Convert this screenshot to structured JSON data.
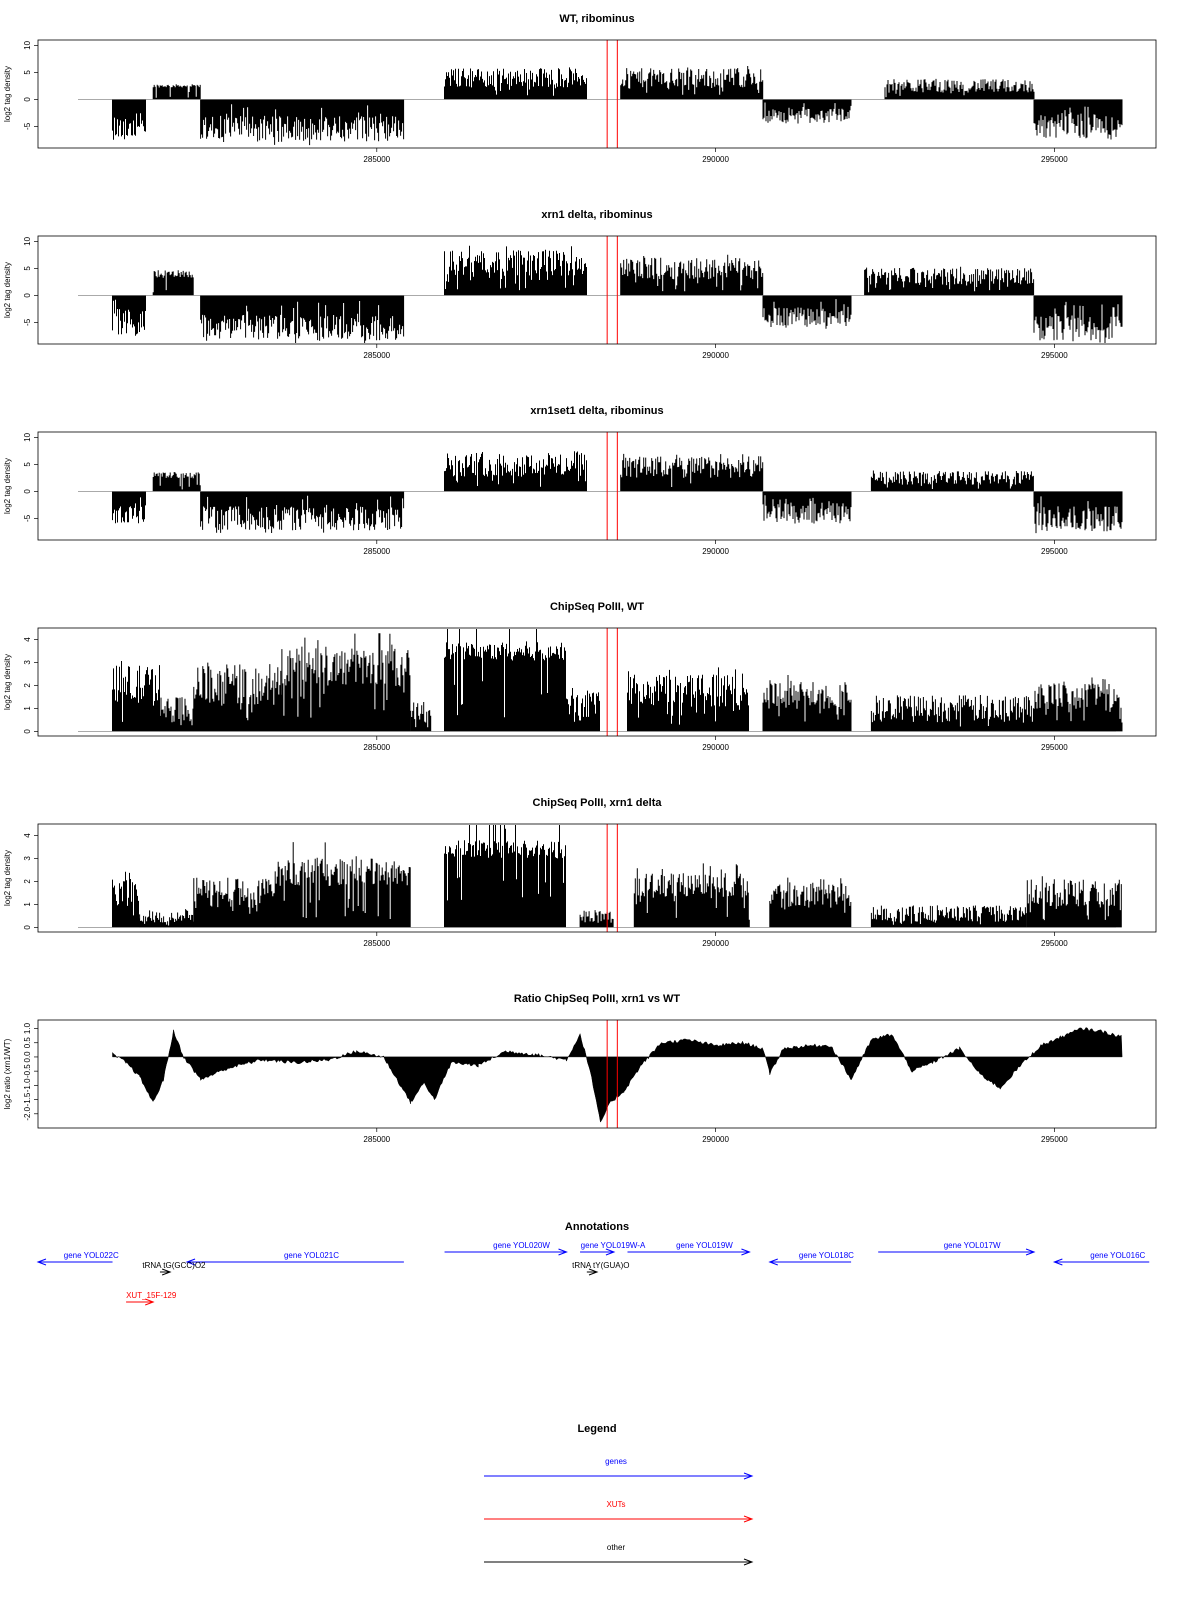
{
  "chart_data": [
    {
      "type": "bar",
      "title": "WT, ribominus",
      "ylabel": "log2 tag density",
      "ylim": [
        -9,
        11
      ],
      "yticks": [
        -5,
        0,
        5,
        10
      ],
      "xlim": [
        280000,
        296500
      ],
      "xticks": [
        "285000",
        "290000",
        "295000"
      ],
      "markers": [
        288400,
        288550
      ],
      "segments": [
        {
          "x": [
            281100,
            281600
          ],
          "base": 0,
          "amp": -5,
          "var": 0.5
        },
        {
          "x": [
            281700,
            282400
          ],
          "base": 1.5,
          "amp": 1,
          "var": 0.3
        },
        {
          "x": [
            282400,
            285400
          ],
          "base": 0,
          "amp": -5.5,
          "var": 0.45
        },
        {
          "x": [
            286000,
            288100
          ],
          "base": 0,
          "amp": 4,
          "var": 0.45
        },
        {
          "x": [
            288600,
            290700
          ],
          "base": 0,
          "amp": 4,
          "var": 0.45
        },
        {
          "x": [
            290700,
            292000
          ],
          "base": 0,
          "amp": -3,
          "var": 0.5
        },
        {
          "x": [
            292500,
            294700
          ],
          "base": 0,
          "amp": 2.5,
          "var": 0.5
        },
        {
          "x": [
            294700,
            296000
          ],
          "base": 0,
          "amp": -5,
          "var": 0.45
        }
      ]
    },
    {
      "type": "bar",
      "title": "xrn1 delta, ribominus",
      "ylabel": "log2 tag density",
      "ylim": [
        -9,
        11
      ],
      "yticks": [
        -5,
        0,
        5,
        10
      ],
      "xlim": [
        280000,
        296500
      ],
      "xticks": [
        "285000",
        "290000",
        "295000"
      ],
      "markers": [
        288400,
        288550
      ],
      "segments": [
        {
          "x": [
            281100,
            281600
          ],
          "base": 0,
          "amp": -5,
          "var": 0.5
        },
        {
          "x": [
            281700,
            282300
          ],
          "base": 1.5,
          "amp": 2.5,
          "var": 0.3
        },
        {
          "x": [
            282400,
            285400
          ],
          "base": 0,
          "amp": -6,
          "var": 0.4
        },
        {
          "x": [
            286000,
            288100
          ],
          "base": 0,
          "amp": 6,
          "var": 0.4
        },
        {
          "x": [
            288600,
            290700
          ],
          "base": 0,
          "amp": 5,
          "var": 0.4
        },
        {
          "x": [
            290700,
            292000
          ],
          "base": 0,
          "amp": -4,
          "var": 0.45
        },
        {
          "x": [
            292200,
            294700
          ],
          "base": 0,
          "amp": 3.5,
          "var": 0.45
        },
        {
          "x": [
            294700,
            296000
          ],
          "base": 0,
          "amp": -6,
          "var": 0.4
        }
      ]
    },
    {
      "type": "bar",
      "title": "xrn1set1 delta, ribominus",
      "ylabel": "log2 tag density",
      "ylim": [
        -9,
        11
      ],
      "yticks": [
        -5,
        0,
        5,
        10
      ],
      "xlim": [
        280000,
        296500
      ],
      "xticks": [
        "285000",
        "290000",
        "295000"
      ],
      "markers": [
        288400,
        288550
      ],
      "segments": [
        {
          "x": [
            281100,
            281600
          ],
          "base": 0,
          "amp": -4,
          "var": 0.5
        },
        {
          "x": [
            281700,
            282400
          ],
          "base": 1,
          "amp": 2,
          "var": 0.3
        },
        {
          "x": [
            282400,
            285400
          ],
          "base": 0,
          "amp": -5,
          "var": 0.45
        },
        {
          "x": [
            286000,
            288100
          ],
          "base": 0,
          "amp": 5,
          "var": 0.45
        },
        {
          "x": [
            288600,
            290700
          ],
          "base": 0,
          "amp": 4.5,
          "var": 0.45
        },
        {
          "x": [
            290700,
            292000
          ],
          "base": 0,
          "amp": -4,
          "var": 0.5
        },
        {
          "x": [
            292300,
            294700
          ],
          "base": 0,
          "amp": 2.5,
          "var": 0.5
        },
        {
          "x": [
            294700,
            296000
          ],
          "base": 0,
          "amp": -5,
          "var": 0.45
        }
      ]
    },
    {
      "type": "bar",
      "title": "ChipSeq PolII, WT",
      "ylabel": "log2 tag density",
      "ylim": [
        -0.2,
        4.5
      ],
      "yticks": [
        0,
        1,
        2,
        3,
        4
      ],
      "xlim": [
        280000,
        296500
      ],
      "xticks": [
        "285000",
        "290000",
        "295000"
      ],
      "markers": [
        288400,
        288550
      ],
      "segments": [
        {
          "x": [
            281100,
            281800
          ],
          "base": 0,
          "amp": 2,
          "var": 0.45
        },
        {
          "x": [
            281800,
            282300
          ],
          "base": 0,
          "amp": 1,
          "var": 0.5
        },
        {
          "x": [
            282300,
            283600
          ],
          "base": 0,
          "amp": 2,
          "var": 0.45
        },
        {
          "x": [
            283600,
            285500
          ],
          "base": 0,
          "amp": 2.8,
          "var": 0.3
        },
        {
          "x": [
            285500,
            285800
          ],
          "base": 0,
          "amp": 0.8,
          "var": 0.6
        },
        {
          "x": [
            286000,
            287800
          ],
          "base": 0,
          "amp": 3.5,
          "var": 0.12
        },
        {
          "x": [
            287800,
            288300
          ],
          "base": 0,
          "amp": 1.2,
          "var": 0.6
        },
        {
          "x": [
            288700,
            290500
          ],
          "base": 0,
          "amp": 1.8,
          "var": 0.4
        },
        {
          "x": [
            290700,
            292000
          ],
          "base": 0,
          "amp": 1.6,
          "var": 0.4
        },
        {
          "x": [
            292300,
            294700
          ],
          "base": 0,
          "amp": 1,
          "var": 0.6
        },
        {
          "x": [
            294700,
            296000
          ],
          "base": 0,
          "amp": 1.6,
          "var": 0.4
        }
      ]
    },
    {
      "type": "bar",
      "title": "ChipSeq PolII, xrn1 delta",
      "ylabel": "log2 tag density",
      "ylim": [
        -0.2,
        4.5
      ],
      "yticks": [
        0,
        1,
        2,
        3,
        4
      ],
      "xlim": [
        280000,
        296500
      ],
      "xticks": [
        "285000",
        "290000",
        "295000"
      ],
      "markers": [
        288400,
        288550
      ],
      "segments": [
        {
          "x": [
            281100,
            281500
          ],
          "base": 0,
          "amp": 1.6,
          "var": 0.4
        },
        {
          "x": [
            281500,
            282300
          ],
          "base": 0,
          "amp": 0.5,
          "var": 0.6
        },
        {
          "x": [
            282300,
            283500
          ],
          "base": 0,
          "amp": 1.5,
          "var": 0.45
        },
        {
          "x": [
            283500,
            285500
          ],
          "base": 0,
          "amp": 2.4,
          "var": 0.25
        },
        {
          "x": [
            286000,
            287800
          ],
          "base": 0,
          "amp": 3.4,
          "var": 0.12
        },
        {
          "x": [
            288000,
            288500
          ],
          "base": 0,
          "amp": 0.5,
          "var": 0.6
        },
        {
          "x": [
            288800,
            290500
          ],
          "base": 0,
          "amp": 1.8,
          "var": 0.3
        },
        {
          "x": [
            290800,
            292000
          ],
          "base": 0,
          "amp": 1.4,
          "var": 0.4
        },
        {
          "x": [
            292300,
            294600
          ],
          "base": 0,
          "amp": 0.6,
          "var": 0.6
        },
        {
          "x": [
            294600,
            296000
          ],
          "base": 0,
          "amp": 1.5,
          "var": 0.4
        }
      ]
    },
    {
      "type": "area",
      "title": "Ratio ChipSeq PolII, xrn1 vs WT",
      "ylabel": "log2 ratio (xrn1/WT)",
      "ylim": [
        -2.5,
        1.3
      ],
      "yticks": [
        "-2.0",
        "-1.5",
        "-1.0",
        "-0.5",
        "0.0",
        "0.5",
        "1.0"
      ],
      "ytick_values": [
        -2,
        -1.5,
        -1,
        -0.5,
        0,
        0.5,
        1
      ],
      "xlim": [
        280000,
        296500
      ],
      "xticks": [
        "285000",
        "290000",
        "295000"
      ],
      "markers": [
        288400,
        288550
      ],
      "points": [
        [
          281100,
          0.1
        ],
        [
          281300,
          -0.2
        ],
        [
          281500,
          -0.7
        ],
        [
          281700,
          -1.6
        ],
        [
          281850,
          -0.8
        ],
        [
          282000,
          0.9
        ],
        [
          282150,
          0
        ],
        [
          282400,
          -0.8
        ],
        [
          282800,
          -0.4
        ],
        [
          283300,
          -0.1
        ],
        [
          283800,
          -0.2
        ],
        [
          284300,
          -0.1
        ],
        [
          284700,
          0.2
        ],
        [
          285100,
          0
        ],
        [
          285300,
          -0.8
        ],
        [
          285500,
          -1.6
        ],
        [
          285700,
          -0.9
        ],
        [
          285850,
          -1.5
        ],
        [
          286100,
          -0.2
        ],
        [
          286500,
          -0.3
        ],
        [
          286900,
          0.2
        ],
        [
          287300,
          0.1
        ],
        [
          287800,
          -0.1
        ],
        [
          288000,
          0.8
        ],
        [
          288150,
          -0.5
        ],
        [
          288300,
          -2.3
        ],
        [
          288450,
          -1.6
        ],
        [
          288650,
          -1.2
        ],
        [
          288900,
          -0.3
        ],
        [
          289200,
          0.5
        ],
        [
          289600,
          0.6
        ],
        [
          290000,
          0.4
        ],
        [
          290400,
          0.5
        ],
        [
          290700,
          0.3
        ],
        [
          290800,
          -0.6
        ],
        [
          291000,
          0.3
        ],
        [
          291400,
          0.4
        ],
        [
          291700,
          0.4
        ],
        [
          292000,
          -0.8
        ],
        [
          292300,
          0.6
        ],
        [
          292600,
          0.8
        ],
        [
          292900,
          -0.5
        ],
        [
          293200,
          -0.2
        ],
        [
          293600,
          0.3
        ],
        [
          293900,
          -0.6
        ],
        [
          294200,
          -1.1
        ],
        [
          294500,
          -0.3
        ],
        [
          294800,
          0.4
        ],
        [
          295100,
          0.7
        ],
        [
          295400,
          1.0
        ],
        [
          295700,
          0.9
        ],
        [
          296000,
          0.7
        ]
      ]
    }
  ],
  "annotations": {
    "title": "Annotations",
    "xlim": [
      280000,
      296500
    ],
    "items": [
      {
        "label": "gene YOL022C",
        "x1": 280000,
        "x2": 281100,
        "row": 2,
        "dir": "left",
        "kind": "gene"
      },
      {
        "label": "gene YOL021C",
        "x1": 282200,
        "x2": 285400,
        "row": 2,
        "dir": "left",
        "kind": "gene"
      },
      {
        "label": "gene YOL020W",
        "x1": 286000,
        "x2": 287800,
        "row": 1,
        "dir": "right",
        "kind": "gene"
      },
      {
        "label": "gene YOL019W-A",
        "x1": 288000,
        "x2": 288500,
        "row": 1,
        "dir": "right",
        "kind": "gene"
      },
      {
        "label": "gene YOL019W",
        "x1": 288700,
        "x2": 290500,
        "row": 1,
        "dir": "right",
        "kind": "gene"
      },
      {
        "label": "gene YOL018C",
        "x1": 290800,
        "x2": 292000,
        "row": 2,
        "dir": "left",
        "kind": "gene"
      },
      {
        "label": "gene YOL017W",
        "x1": 292400,
        "x2": 294700,
        "row": 1,
        "dir": "right",
        "kind": "gene"
      },
      {
        "label": "gene YOL016C",
        "x1": 295000,
        "x2": 296400,
        "row": 2,
        "dir": "left",
        "kind": "gene"
      },
      {
        "label": "tRNA tG(GCC)O2",
        "x1": 281800,
        "x2": 281950,
        "row": 3,
        "dir": "right",
        "kind": "other"
      },
      {
        "label": "tRNA tY(GUA)O",
        "x1": 288100,
        "x2": 288250,
        "row": 3,
        "dir": "right",
        "kind": "other"
      },
      {
        "label": "XUT_15F-129",
        "x1": 281300,
        "x2": 281700,
        "row": 6,
        "dir": "right",
        "kind": "xut"
      }
    ]
  },
  "legend": {
    "title": "Legend",
    "items": [
      {
        "label": "genes",
        "kind": "gene"
      },
      {
        "label": "XUTs",
        "kind": "xut"
      },
      {
        "label": "other",
        "kind": "other"
      }
    ]
  },
  "colors": {
    "gene": "#0000ff",
    "xut": "#ff0000",
    "other": "#000000",
    "marker": "#ff0000",
    "bars": "#000000"
  }
}
